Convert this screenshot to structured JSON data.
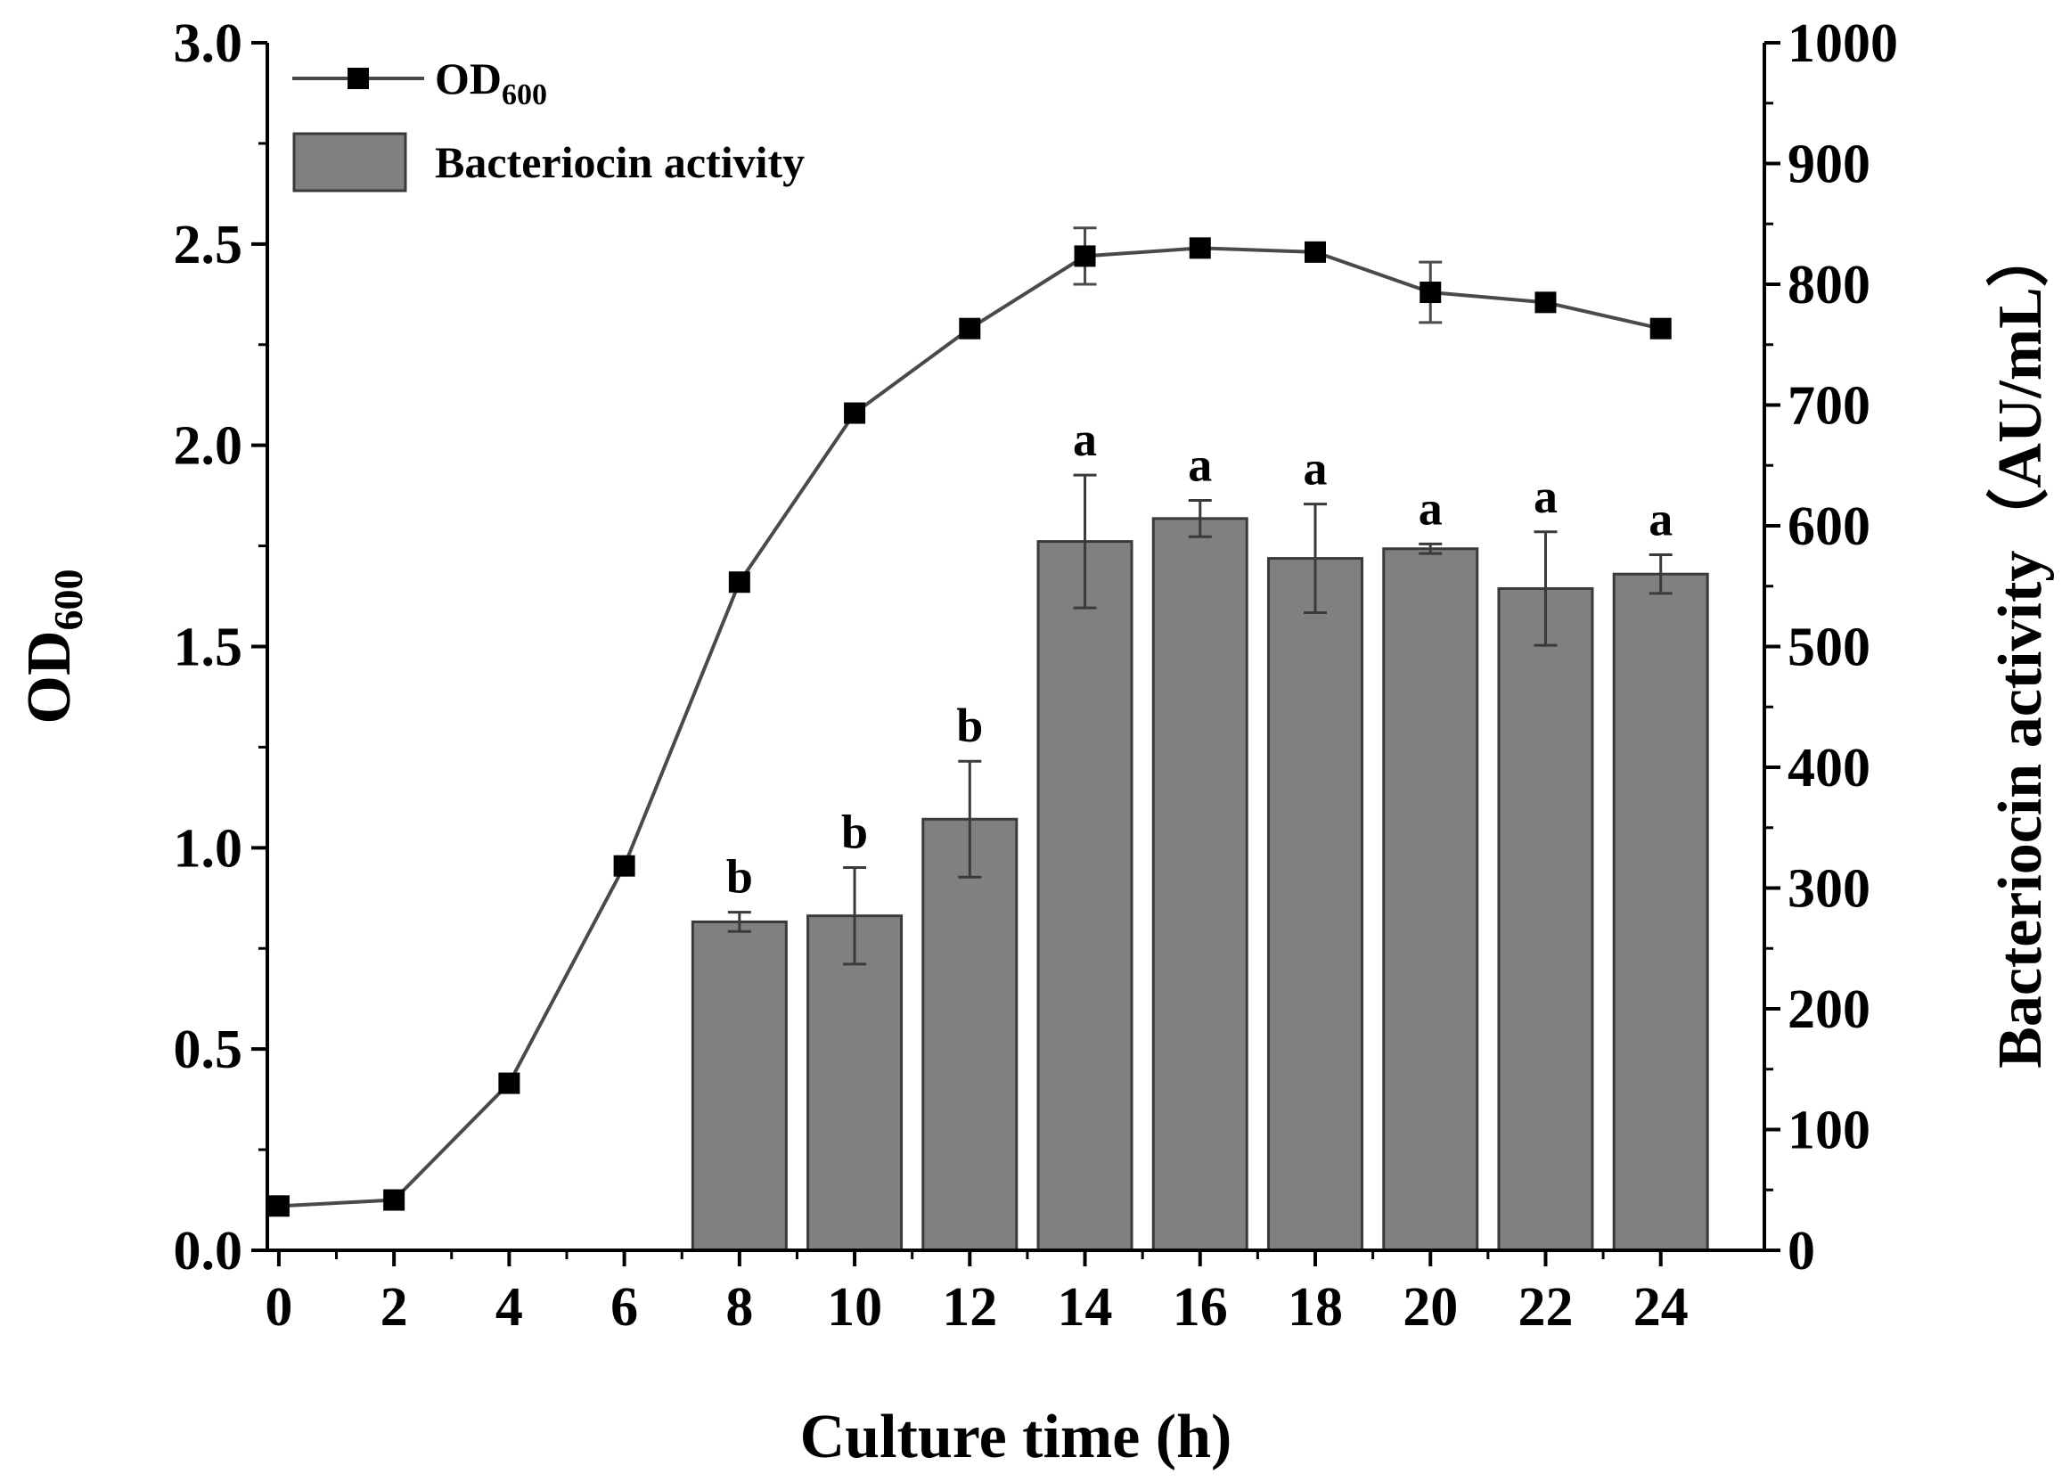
{
  "chart_data": {
    "type": "bar+line (dual axis)",
    "xlabel": "Culture time (h)",
    "ylabel_left": "OD",
    "ylabel_left_sub": "600",
    "ylabel_right": "Bacteriocin activity（AU/mL）",
    "x_ticks": [
      "0",
      "2",
      "4",
      "6",
      "8",
      "10",
      "12",
      "14",
      "16",
      "18",
      "20",
      "22",
      "24"
    ],
    "x": [
      0,
      2,
      4,
      6,
      8,
      10,
      12,
      14,
      16,
      18,
      20,
      22,
      24
    ],
    "xlim": [
      -0.2,
      25.8
    ],
    "y_left_ticks": [
      "0.0",
      "0.5",
      "1.0",
      "1.5",
      "2.0",
      "2.5",
      "3.0"
    ],
    "y_left_lim": [
      0,
      3.0
    ],
    "y_right_ticks": [
      "0",
      "100",
      "200",
      "300",
      "400",
      "500",
      "600",
      "700",
      "800",
      "900",
      "1000"
    ],
    "y_right_lim": [
      0,
      1000
    ],
    "legend": {
      "placement": "top-left",
      "line_label": "OD",
      "line_label_sub": "600",
      "bar_label": "Bacteriocin activity"
    },
    "series": [
      {
        "name": "OD600",
        "kind": "line",
        "axis": "left",
        "x": [
          0,
          2,
          4,
          6,
          8,
          10,
          12,
          14,
          16,
          18,
          20,
          22,
          24
        ],
        "values": [
          0.11,
          0.125,
          0.415,
          0.955,
          1.66,
          2.08,
          2.29,
          2.47,
          2.49,
          2.48,
          2.38,
          2.355,
          2.29
        ],
        "errors": [
          0,
          0,
          0,
          0,
          0,
          0,
          0,
          0.07,
          0,
          0,
          0.075,
          0,
          0
        ]
      },
      {
        "name": "Bacteriocin activity",
        "kind": "bar",
        "axis": "right",
        "x": [
          8,
          10,
          12,
          14,
          16,
          18,
          20,
          22,
          24
        ],
        "values": [
          272,
          277,
          357,
          587,
          606,
          573,
          581,
          548,
          560
        ],
        "errors": [
          8,
          40,
          48,
          55,
          15,
          45,
          4,
          47,
          16
        ],
        "significance": [
          "b",
          "b",
          "b",
          "a",
          "a",
          "a",
          "a",
          "a",
          "a"
        ]
      }
    ],
    "colors": {
      "bar_fill": "#808080",
      "bar_stroke": "#3a3a3a",
      "line": "#4a4a4a",
      "marker": "#000000",
      "axis": "#000000"
    }
  }
}
